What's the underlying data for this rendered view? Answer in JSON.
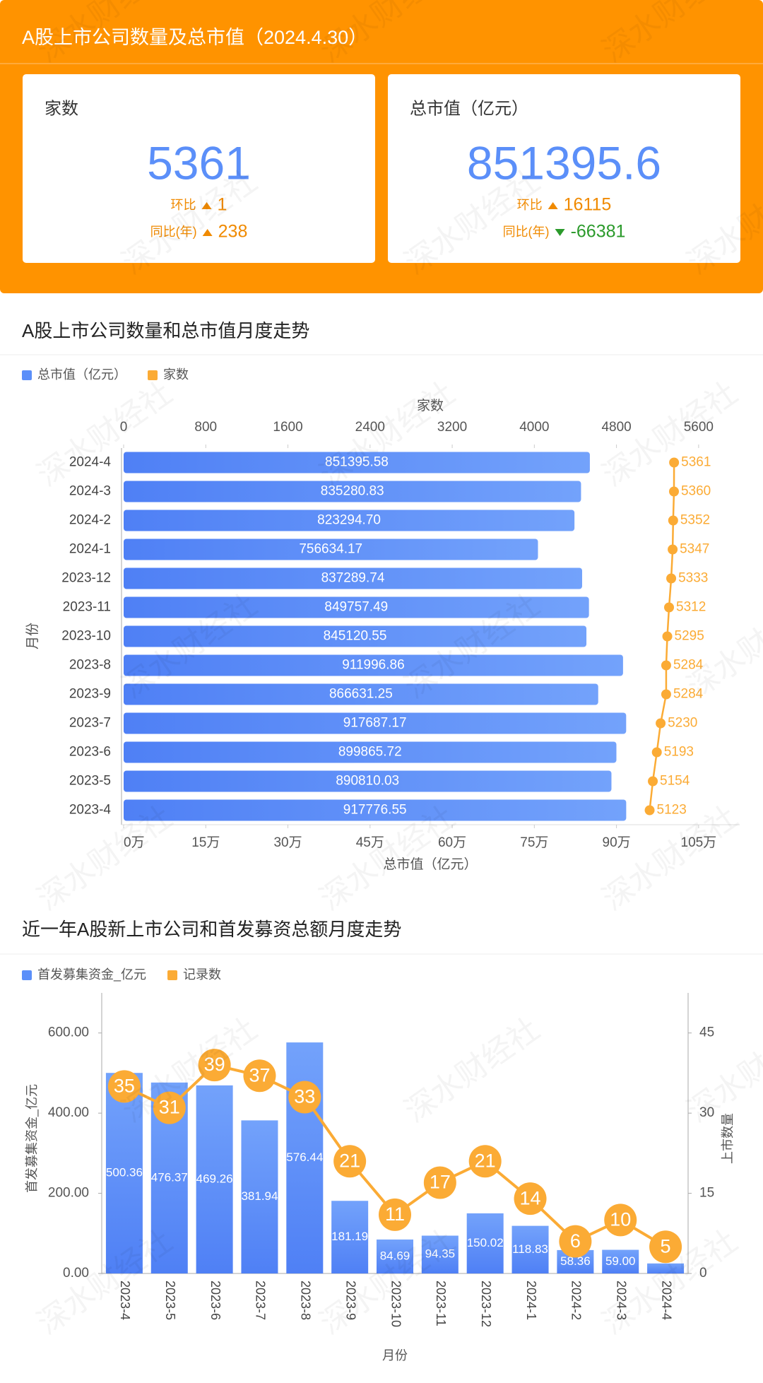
{
  "header": {
    "title": "A股上市公司数量及总市值（2024.4.30）"
  },
  "watermark": "深水财经社",
  "cards": [
    {
      "label": "家数",
      "value": "5361",
      "changes": [
        {
          "label": "环比",
          "trend": "up",
          "value": "1"
        },
        {
          "label": "同比(年)",
          "trend": "up",
          "value": "238"
        }
      ]
    },
    {
      "label": "总市值（亿元）",
      "value": "851395.6",
      "changes": [
        {
          "label": "环比",
          "trend": "up",
          "value": "16115"
        },
        {
          "label": "同比(年)",
          "trend": "down",
          "value": "-66381"
        }
      ]
    }
  ],
  "chart_data": [
    {
      "type": "bar",
      "orientation": "horizontal",
      "title": "A股上市公司数量和总市值月度走势",
      "categories": [
        "2024-4",
        "2024-3",
        "2024-2",
        "2024-1",
        "2023-12",
        "2023-11",
        "2023-10",
        "2023-8",
        "2023-9",
        "2023-7",
        "2023-6",
        "2023-5",
        "2023-4"
      ],
      "series": [
        {
          "name": "总市值（亿元）",
          "color": "#5b8ff9",
          "values": [
            851395.58,
            835280.83,
            823294.7,
            756634.17,
            837289.74,
            849757.49,
            845120.55,
            911996.86,
            866631.25,
            917687.17,
            899865.72,
            890810.03,
            917776.55
          ],
          "value_labels": [
            "851395.58",
            "835280.83",
            "823294.70",
            "756634.17",
            "837289.74",
            "849757.49",
            "845120.55",
            "911996.86",
            "866631.25",
            "917687.17",
            "899865.72",
            "890810.03",
            "917776.55"
          ]
        },
        {
          "name": "家数",
          "color": "#fbab35",
          "type": "line",
          "axis": "x2",
          "values": [
            5361,
            5360,
            5352,
            5347,
            5333,
            5312,
            5295,
            5284,
            5284,
            5230,
            5193,
            5154,
            5123
          ]
        }
      ],
      "xlim": [
        0,
        1125000
      ],
      "xticks": [
        {
          "value": 0,
          "label": "0万"
        },
        {
          "value": 150000,
          "label": "15万"
        },
        {
          "value": 300000,
          "label": "30万"
        },
        {
          "value": 450000,
          "label": "45万"
        },
        {
          "value": 600000,
          "label": "60万"
        },
        {
          "value": 750000,
          "label": "75万"
        },
        {
          "value": 900000,
          "label": "90万"
        },
        {
          "value": 1050000,
          "label": "105万"
        }
      ],
      "x2lim": [
        0,
        6000
      ],
      "x2ticks": [
        0,
        800,
        1600,
        2400,
        3200,
        4000,
        4800,
        5600
      ],
      "xlabel": "总市值（亿元）",
      "x2label": "家数",
      "ylabel": "月份"
    },
    {
      "type": "bar",
      "orientation": "vertical",
      "title": "近一年A股新上市公司和首发募资总额月度走势",
      "categories": [
        "2023-4",
        "2023-5",
        "2023-6",
        "2023-7",
        "2023-8",
        "2023-9",
        "2023-10",
        "2023-11",
        "2023-12",
        "2024-1",
        "2024-2",
        "2024-3",
        "2024-4"
      ],
      "series": [
        {
          "name": "首发募集资金_亿元",
          "color": "#5b8ff9",
          "values": [
            500.36,
            476.37,
            469.26,
            381.94,
            576.44,
            181.19,
            84.69,
            94.35,
            150.02,
            118.83,
            58.36,
            59.0,
            25
          ],
          "value_labels": [
            "500.36",
            "476.37",
            "469.26",
            "381.94",
            "576.44",
            "181.19",
            "84.69",
            "94.35",
            "150.02",
            "118.83",
            "58.36",
            "59.00",
            null
          ]
        },
        {
          "name": "记录数",
          "color": "#fbab35",
          "type": "line",
          "axis": "y2",
          "values": [
            35,
            31,
            39,
            37,
            33,
            21,
            11,
            17,
            21,
            14,
            6,
            10,
            5
          ]
        }
      ],
      "ylim": [
        0,
        700
      ],
      "yticks": [
        {
          "value": 0,
          "label": "0.00"
        },
        {
          "value": 200,
          "label": "200.00"
        },
        {
          "value": 400,
          "label": "400.00"
        },
        {
          "value": 600,
          "label": "600.00"
        }
      ],
      "y2lim": [
        0,
        52.5
      ],
      "y2ticks": [
        0,
        15,
        30,
        45
      ],
      "ylabel": "首发募集资金_亿元",
      "y2label": "上市数量",
      "xlabel": "月份"
    }
  ]
}
